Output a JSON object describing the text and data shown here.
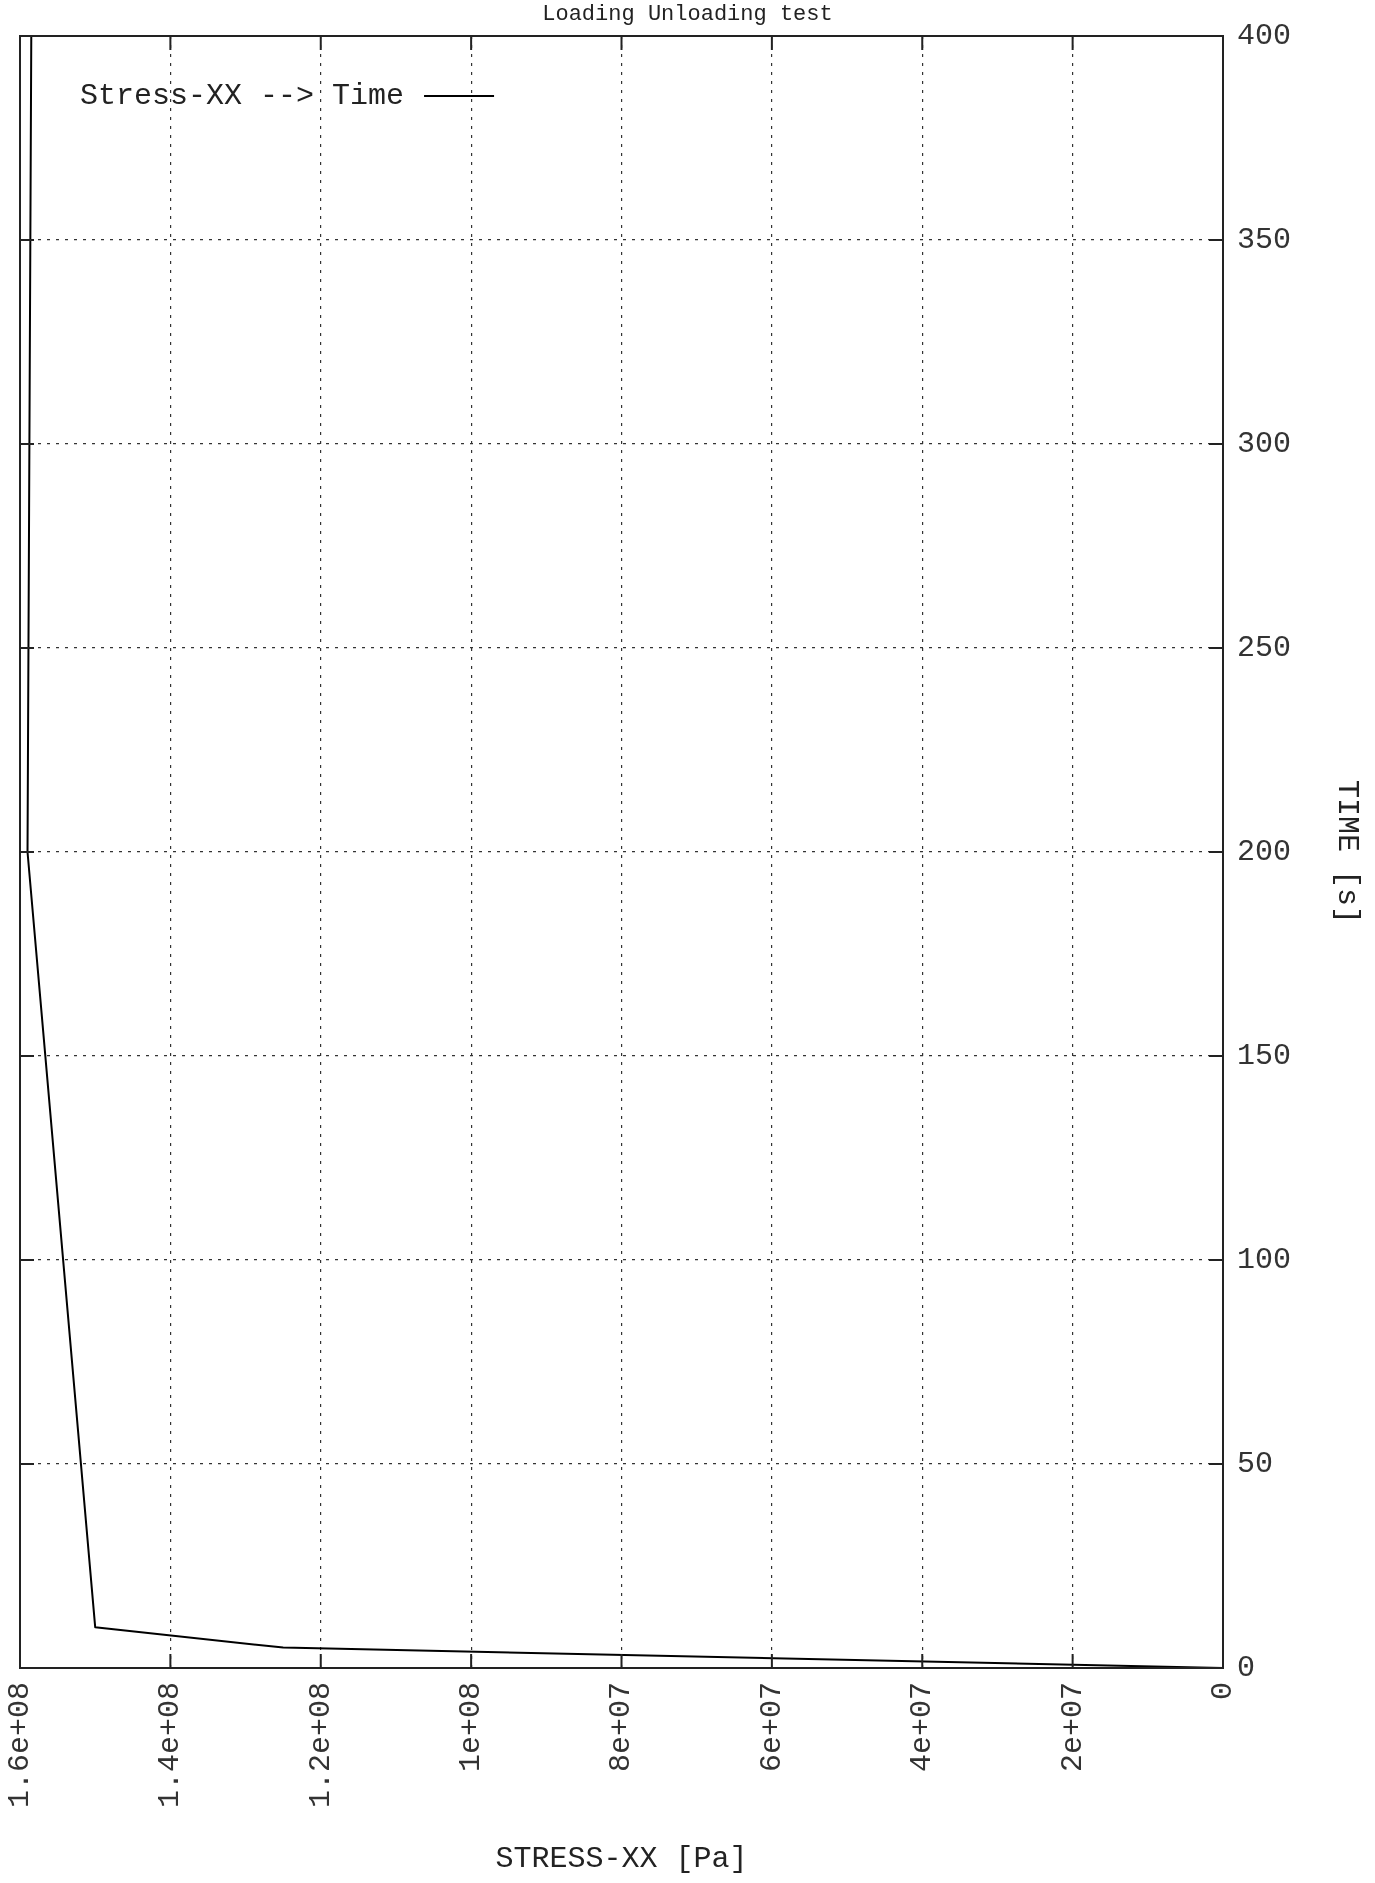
{
  "chart_data": {
    "type": "line",
    "title": "Loading Unloading test",
    "xlabel": "STRESS-XX [Pa]",
    "ylabel": "TIME [s]",
    "x": [
      0,
      125000000,
      150000000,
      159000000,
      158500000
    ],
    "series": [
      {
        "name": "Stress-XX --> Time",
        "color": "#000000",
        "values": [
          0,
          5,
          10,
          200,
          400
        ]
      }
    ],
    "ylim": [
      0,
      400
    ],
    "yticks": [
      0,
      50,
      100,
      150,
      200,
      250,
      300,
      350,
      400
    ],
    "xlim": [
      160000000,
      0
    ],
    "xticks": [
      {
        "value": 0,
        "label": "0"
      },
      {
        "value": 20000000,
        "label": "2e+07"
      },
      {
        "value": 40000000,
        "label": "4e+07"
      },
      {
        "value": 60000000,
        "label": "6e+07"
      },
      {
        "value": 80000000,
        "label": "8e+07"
      },
      {
        "value": 100000000,
        "label": "1e+08"
      },
      {
        "value": 120000000,
        "label": "1.2e+08"
      },
      {
        "value": 140000000,
        "label": "1.4e+08"
      },
      {
        "value": 160000000,
        "label": "1.6e+08"
      }
    ],
    "grid": true,
    "legend": "top left",
    "marker": "none",
    "line_style": "solid"
  }
}
